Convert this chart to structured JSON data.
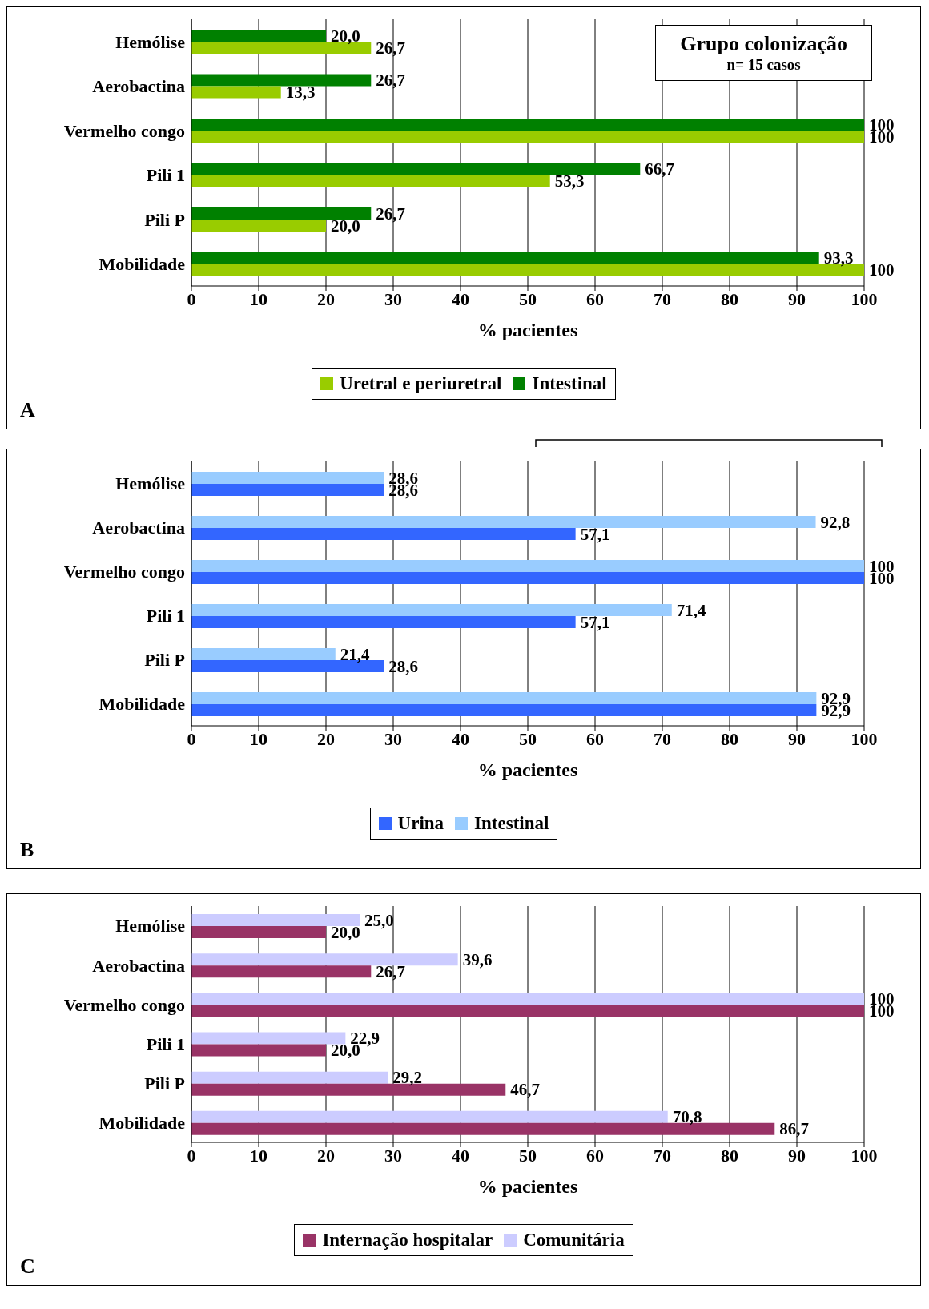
{
  "chart_data": [
    {
      "type": "bar",
      "orientation": "horizontal",
      "categories": [
        "Hemólise",
        "Aerobactina",
        "Vermelho congo",
        "Pili 1",
        "Pili P",
        "Mobilidade"
      ],
      "series": [
        {
          "name": "Uretral e periuretral",
          "color": "#99cc00",
          "values": [
            26.7,
            13.3,
            100,
            53.3,
            20.0,
            100
          ],
          "value_labels": [
            "26,7",
            "13,3",
            "100",
            "53,3",
            "20,0",
            "100"
          ]
        },
        {
          "name": "Intestinal",
          "color": "#008000",
          "values": [
            20.0,
            26.7,
            100,
            66.7,
            26.7,
            93.3
          ],
          "value_labels": [
            "20,0",
            "26,7",
            "100",
            "66,7",
            "26,7",
            "93,3"
          ]
        }
      ],
      "xlim": [
        0,
        100
      ],
      "xticks": [
        0,
        10,
        20,
        30,
        40,
        50,
        60,
        70,
        80,
        90,
        100
      ],
      "xlabel": "% pacientes",
      "grid": "x",
      "legend": "bottom",
      "annotations": [
        "Grupo colonização",
        "n= 15 casos",
        "A"
      ]
    },
    {
      "type": "bar",
      "orientation": "horizontal",
      "categories": [
        "Hemólise",
        "Aerobactina",
        "Vermelho congo",
        "Pili 1",
        "Pili P",
        "Mobilidade"
      ],
      "series": [
        {
          "name": "Urina",
          "color": "#3366ff",
          "values": [
            28.6,
            57.1,
            100,
            57.1,
            28.6,
            92.9
          ],
          "value_labels": [
            "28,6",
            "57,1",
            "100",
            "57,1",
            "28,6",
            "92,9"
          ]
        },
        {
          "name": "Intestinal",
          "color": "#99ccff",
          "values": [
            28.6,
            92.8,
            100,
            71.4,
            21.4,
            92.9
          ],
          "value_labels": [
            "28,6",
            "92,8",
            "100",
            "71,4",
            "21,4",
            "92,9"
          ]
        }
      ],
      "xlim": [
        0,
        100
      ],
      "xticks": [
        0,
        10,
        20,
        30,
        40,
        50,
        60,
        70,
        80,
        90,
        100
      ],
      "xlabel": "% pacientes",
      "grid": "x",
      "legend": "bottom",
      "annotations": [
        "B"
      ]
    },
    {
      "type": "bar",
      "orientation": "horizontal",
      "categories": [
        "Hemólise",
        "Aerobactina",
        "Vermelho congo",
        "Pili 1",
        "Pili P",
        "Mobilidade"
      ],
      "series": [
        {
          "name": "Internação hospitalar",
          "color": "#993366",
          "values": [
            20.0,
            26.7,
            100,
            20.0,
            46.7,
            86.7
          ],
          "value_labels": [
            "20,0",
            "26,7",
            "100",
            "20,0",
            "46,7",
            "86,7"
          ]
        },
        {
          "name": "Comunitária",
          "color": "#ccccff",
          "values": [
            25.0,
            39.6,
            100,
            22.9,
            29.2,
            70.8
          ],
          "value_labels": [
            "25,0",
            "39,6",
            "100",
            "22,9",
            "29,2",
            "70,8"
          ]
        }
      ],
      "xlim": [
        0,
        100
      ],
      "xticks": [
        0,
        10,
        20,
        30,
        40,
        50,
        60,
        70,
        80,
        90,
        100
      ],
      "xlabel": "% pacientes",
      "grid": "x",
      "legend": "bottom",
      "annotations": [
        "C"
      ]
    }
  ]
}
